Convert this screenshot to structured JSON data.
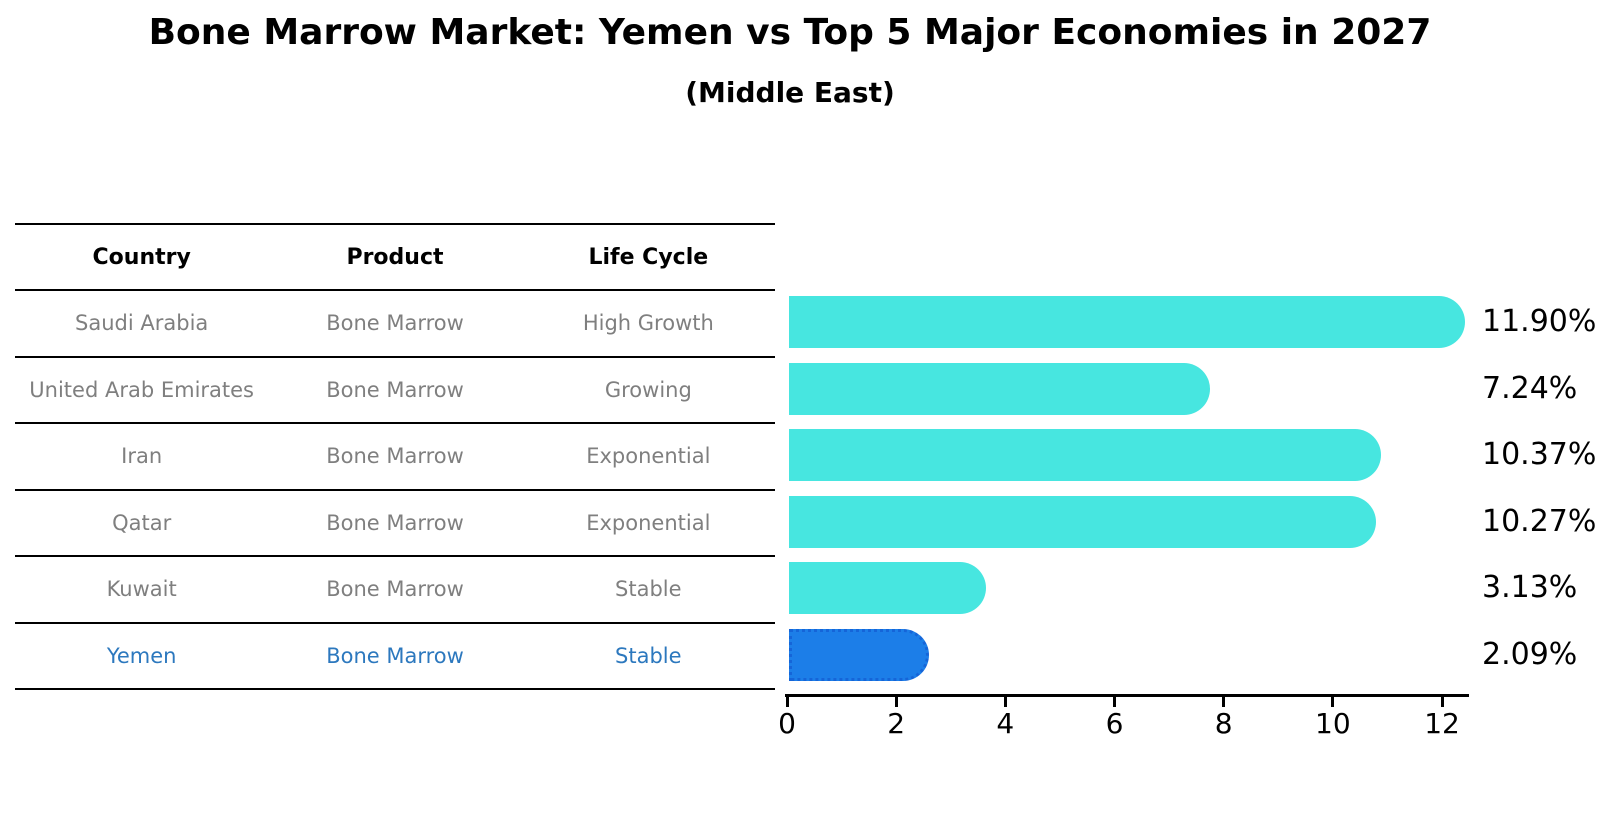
{
  "title": "Bone Marrow Market: Yemen vs Top 5 Major Economies in 2027",
  "subtitle": "(Middle East)",
  "table": {
    "headers": [
      "Country",
      "Product",
      "Life Cycle"
    ],
    "rows": [
      {
        "country": "Saudi Arabia",
        "product": "Bone Marrow",
        "life_cycle": "High Growth",
        "highlight": false
      },
      {
        "country": "United Arab Emirates",
        "product": "Bone Marrow",
        "life_cycle": "Growing",
        "highlight": false
      },
      {
        "country": "Iran",
        "product": "Bone Marrow",
        "life_cycle": "Exponential",
        "highlight": false
      },
      {
        "country": "Qatar",
        "product": "Bone Marrow",
        "life_cycle": "Exponential",
        "highlight": false
      },
      {
        "country": "Kuwait",
        "product": "Bone Marrow",
        "life_cycle": "Stable",
        "highlight": false
      },
      {
        "country": "Yemen",
        "product": "Bone Marrow",
        "life_cycle": "Stable",
        "highlight": true
      }
    ]
  },
  "chart_data": {
    "type": "bar",
    "orientation": "horizontal",
    "title": "Bone Marrow Market: Yemen vs Top 5 Major Economies in 2027",
    "subtitle": "(Middle East)",
    "categories": [
      "Saudi Arabia",
      "United Arab Emirates",
      "Iran",
      "Qatar",
      "Kuwait",
      "Yemen"
    ],
    "values": [
      11.9,
      7.24,
      10.37,
      10.27,
      3.13,
      2.09
    ],
    "value_labels": [
      "11.90%",
      "7.24%",
      "10.37%",
      "10.27%",
      "3.13%",
      "2.09%"
    ],
    "highlight_index": 5,
    "xticks": [
      0,
      2,
      4,
      6,
      8,
      10,
      12
    ],
    "xlim": [
      0,
      12.5
    ],
    "grid": false,
    "legend": false,
    "colors": {
      "bar": "#47e6e0",
      "highlight_bar": "#1c7ee8",
      "highlight_border": "#1565d8",
      "table_text": "#7f7f7f",
      "highlight_text": "#2c78be",
      "axis": "#000000"
    }
  }
}
